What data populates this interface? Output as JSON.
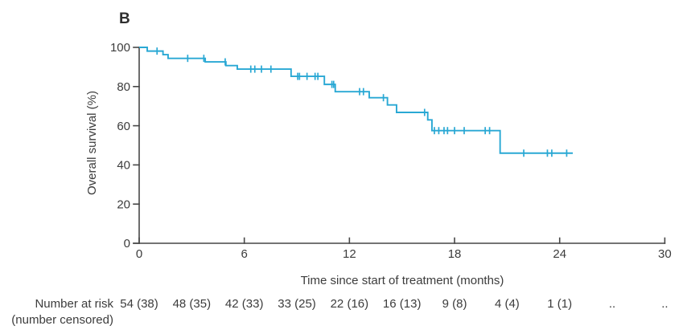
{
  "panel_label": "B",
  "colors": {
    "curve": "#29a8d4",
    "axis": "#474747",
    "text": "#3c3c3c",
    "background": "#ffffff"
  },
  "chart_data": {
    "type": "line",
    "subtype": "kaplan-meier-step-curve",
    "title": "B",
    "xlabel": "Time since start of treatment (months)",
    "ylabel": "Overall survival (%)",
    "xlim": [
      0,
      30
    ],
    "ylim": [
      0,
      100
    ],
    "x_ticks": [
      0,
      6,
      12,
      18,
      24,
      30
    ],
    "y_ticks": [
      0,
      20,
      40,
      60,
      80,
      100
    ],
    "grid": false,
    "legend": "none",
    "series": [
      {
        "name": "Overall survival",
        "color": "#29a8d4",
        "steps_month_percent": [
          [
            0,
            100
          ],
          [
            0.46,
            98.1
          ],
          [
            1.36,
            96.3
          ],
          [
            1.65,
            94.4
          ],
          [
            3.77,
            92.6
          ],
          [
            4.95,
            90.7
          ],
          [
            5.6,
            88.9
          ],
          [
            8.67,
            85.2
          ],
          [
            10.57,
            81.1
          ],
          [
            11.19,
            77.4
          ],
          [
            13.13,
            74.3
          ],
          [
            14.17,
            70.6
          ],
          [
            14.69,
            66.8
          ],
          [
            16.47,
            63.0
          ],
          [
            16.71,
            57.5
          ],
          [
            20.6,
            46.0
          ]
        ],
        "end_month": 24.75,
        "censor_marks_month_percent": [
          [
            1.02,
            98.1
          ],
          [
            2.77,
            94.4
          ],
          [
            3.69,
            94.4
          ],
          [
            4.91,
            92.6
          ],
          [
            6.37,
            88.9
          ],
          [
            6.6,
            88.9
          ],
          [
            6.98,
            88.9
          ],
          [
            7.52,
            88.9
          ],
          [
            9.05,
            85.2
          ],
          [
            9.15,
            85.2
          ],
          [
            9.58,
            85.2
          ],
          [
            10.04,
            85.2
          ],
          [
            10.2,
            85.2
          ],
          [
            11.0,
            81.1
          ],
          [
            11.1,
            81.1
          ],
          [
            12.58,
            77.4
          ],
          [
            12.8,
            77.4
          ],
          [
            13.94,
            74.3
          ],
          [
            16.29,
            66.8
          ],
          [
            16.85,
            57.5
          ],
          [
            17.1,
            57.5
          ],
          [
            17.4,
            57.5
          ],
          [
            17.6,
            57.5
          ],
          [
            18.0,
            57.5
          ],
          [
            18.55,
            57.5
          ],
          [
            19.75,
            57.5
          ],
          [
            20.0,
            57.5
          ],
          [
            21.95,
            46.0
          ],
          [
            23.3,
            46.0
          ],
          [
            23.55,
            46.0
          ],
          [
            24.4,
            46.0
          ]
        ]
      }
    ],
    "risk_table": {
      "row_label_line1": "Number at risk",
      "row_label_line2": "(number censored)",
      "months": [
        0,
        3,
        6,
        9,
        12,
        15,
        18,
        21,
        24,
        27,
        30
      ],
      "values": [
        "54 (38)",
        "48 (35)",
        "42 (33)",
        "33 (25)",
        "22 (16)",
        "16 (13)",
        "9 (8)",
        "4 (4)",
        "1 (1)",
        "..",
        ".."
      ]
    }
  }
}
